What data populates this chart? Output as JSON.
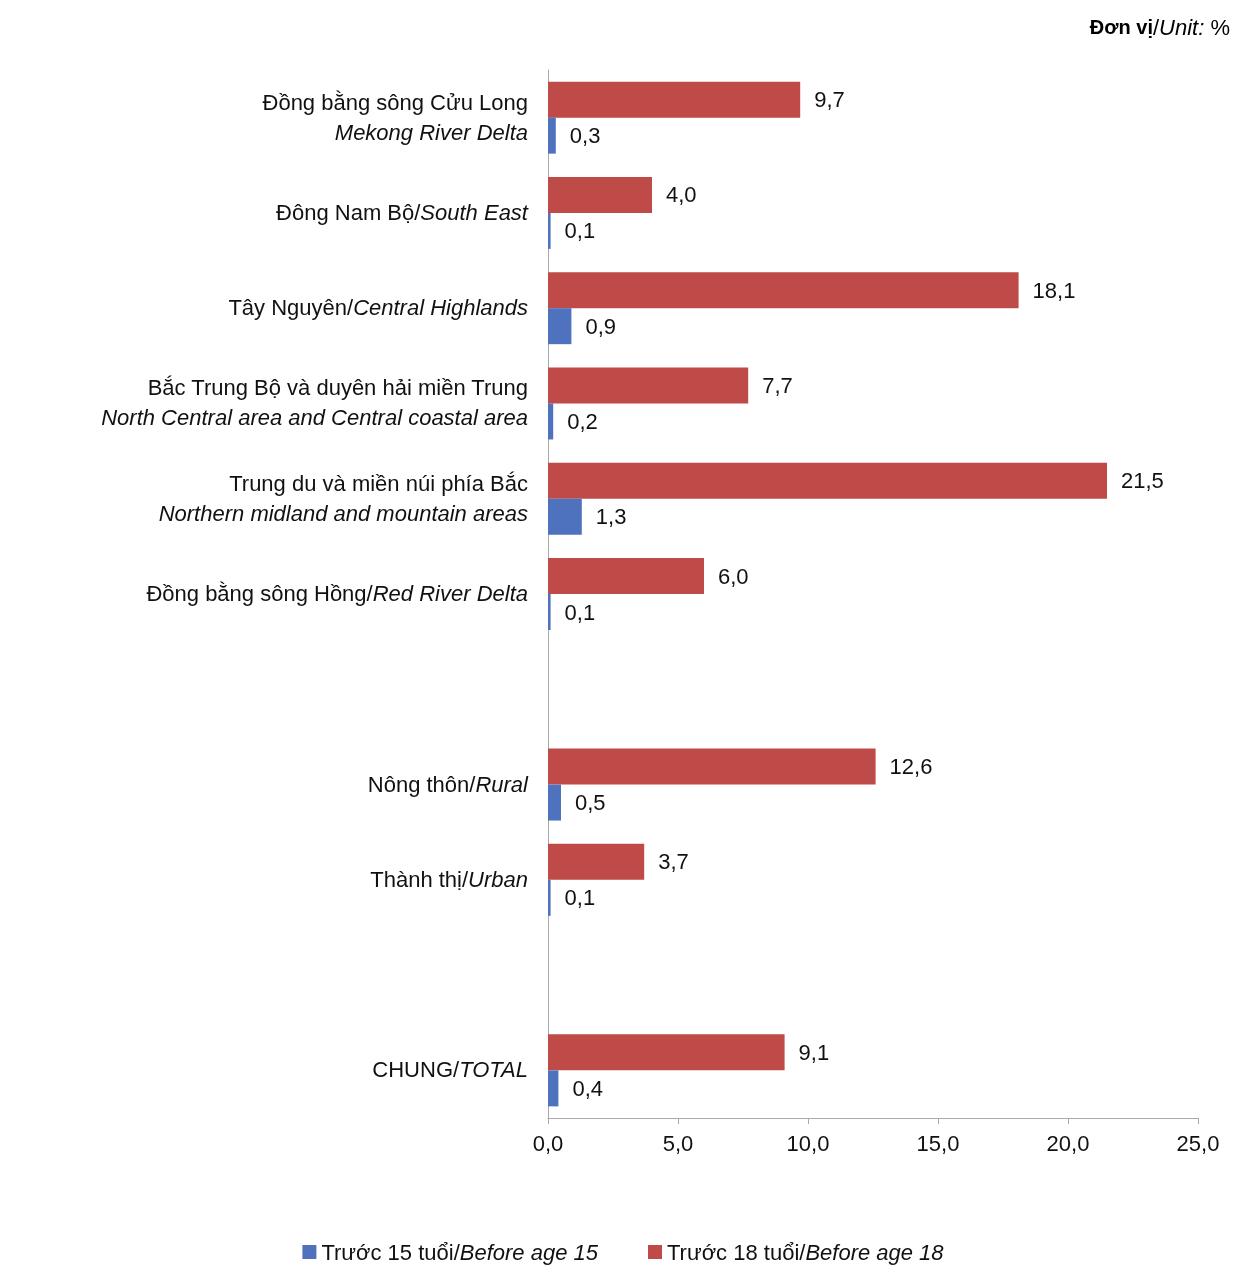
{
  "chart_data": {
    "type": "bar",
    "orientation": "horizontal",
    "annotations": [
      "Đơn vị/Unit: %"
    ],
    "categories": [
      "Đồng bằng sông Cửu Long\nMekong River Delta",
      "Đông Nam Bộ/South East",
      "Tây Nguyên/Central Highlands",
      "Bắc Trung Bộ và duyên hải miền Trung\nNorth Central area and Central coastal area",
      "Trung du và miền núi phía Bắc\nNorthern midland and mountain areas",
      "Đồng bằng sông Hồng/Red River Delta",
      null,
      "Nông thôn/Rural",
      "Thành thị/Urban",
      null,
      "CHUNG/TOTAL"
    ],
    "series": [
      {
        "name": "Trước 15 tuổi/Before age 15",
        "color": "#4f72be",
        "values": [
          0.3,
          0.1,
          0.9,
          0.2,
          1.3,
          0.1,
          null,
          0.5,
          0.1,
          null,
          0.4
        ],
        "value_labels": [
          "0,3",
          "0,1",
          "0,9",
          "0,2",
          "1,3",
          "0,1",
          null,
          "0,5",
          "0,1",
          null,
          "0,4"
        ]
      },
      {
        "name": "Trước 18 tuổi/Before age 18",
        "color": "#be4b48",
        "values": [
          9.7,
          4.0,
          18.1,
          7.7,
          21.5,
          6.0,
          null,
          12.6,
          3.7,
          null,
          9.1
        ],
        "value_labels": [
          "9,7",
          "4,0",
          "18,1",
          "7,7",
          "21,5",
          "6,0",
          null,
          "12,6",
          "3,7",
          null,
          "9,1"
        ]
      }
    ],
    "xlim": [
      0,
      25
    ],
    "xticks": [
      {
        "value": 0,
        "label": "0,0"
      },
      {
        "value": 5,
        "label": "5,0"
      },
      {
        "value": 10,
        "label": "10,0"
      },
      {
        "value": 15,
        "label": "15,0"
      },
      {
        "value": 20,
        "label": "20,0"
      },
      {
        "value": 25,
        "label": "25,0"
      }
    ],
    "grid": false,
    "legend": "bottom"
  }
}
